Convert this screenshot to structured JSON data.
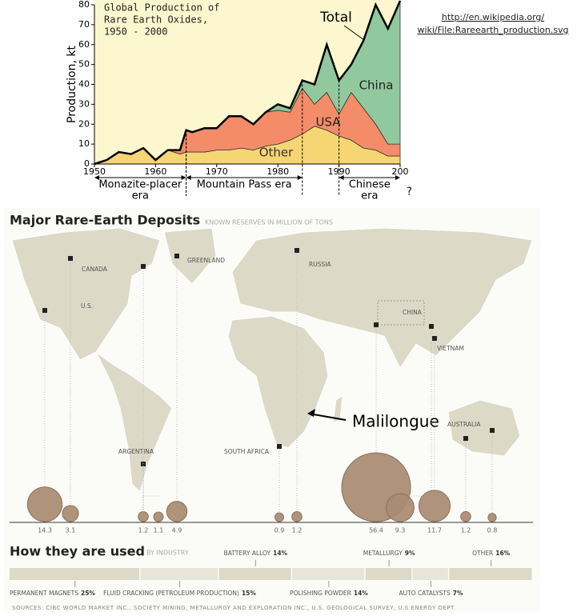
{
  "link": [
    "http://en.wikipedia.org/",
    "wiki/File:Rareearth_production.svg"
  ],
  "annotation": "Malilongue",
  "sources": "SOURCES: CIBC WORLD MARKET INC., SOCIETY MINING, METALLURGY AND EXPLORATION INC., U.S. GEOLOGICAL SURVEY, U.S ENERGY DEPT.",
  "chart_data": [
    {
      "type": "area",
      "title_lines": [
        "Global Production of",
        "Rare Earth Oxides,",
        "1950 - 2000"
      ],
      "ylabel": "Production, kt",
      "total_label": "Total",
      "x": [
        1950,
        1952,
        1954,
        1956,
        1958,
        1960,
        1962,
        1964,
        1965,
        1966,
        1968,
        1970,
        1972,
        1974,
        1976,
        1978,
        1980,
        1982,
        1984,
        1986,
        1988,
        1990,
        1992,
        1994,
        1996,
        1998,
        2000
      ],
      "series": [
        {
          "name": "Other",
          "color": "#f6d673",
          "values": [
            0,
            2,
            6,
            5,
            8,
            2,
            7,
            5,
            6,
            6,
            6,
            7,
            7,
            8,
            7,
            9,
            10,
            12,
            15,
            19,
            17,
            14,
            12,
            8,
            7,
            4,
            4
          ]
        },
        {
          "name": "USA",
          "color": "#f58c69",
          "values": [
            0,
            0,
            0,
            0,
            0,
            0,
            0,
            2,
            11,
            10,
            12,
            11,
            17,
            16,
            13,
            17,
            17,
            14,
            23,
            11,
            19,
            11,
            24,
            20,
            13,
            6,
            6
          ]
        },
        {
          "name": "China",
          "color": "#92c89d",
          "values": [
            0,
            0,
            0,
            0,
            0,
            0,
            0,
            0,
            0,
            0,
            0,
            0,
            0,
            0,
            0,
            0,
            3,
            2,
            4,
            10,
            24,
            17,
            14,
            34,
            60,
            58,
            72
          ]
        }
      ],
      "xlim": [
        1950,
        2000
      ],
      "ylim": [
        0,
        80
      ],
      "xticks": [
        1950,
        1960,
        1970,
        1980,
        1990,
        {
          "value": 2000,
          "label": "200"
        }
      ],
      "yticks": [
        0,
        10,
        20,
        30,
        40,
        50,
        60,
        70,
        80
      ],
      "eras": [
        {
          "lines": [
            "Monazite-placer",
            "era"
          ],
          "start": 1950,
          "end": 1965
        },
        {
          "lines": [
            "Mountain Pass era"
          ],
          "start": 1965,
          "end": 1984
        },
        {
          "lines": [
            "Chinese",
            "era"
          ],
          "start": 1990,
          "end": 2000
        }
      ],
      "era_note": "?"
    },
    {
      "type": "bubble",
      "title": "Major Rare-Earth Deposits",
      "subtitle": "KNOWN RESERVES IN MILLION OF TONS",
      "regions": [
        "CANADA",
        "U.S.",
        "GREENLAND",
        "RUSSIA",
        "CHINA",
        "VIETNAM",
        "ARGENTINA",
        "SOUTH AFRICA",
        "AUSTRALIA"
      ],
      "values": [
        14.3,
        3.1,
        1.2,
        1.1,
        4.9,
        0.9,
        1.2,
        56.4,
        9.3,
        11.7,
        1.2,
        0.8
      ],
      "color": "#a88b70"
    },
    {
      "type": "bar",
      "title": "How they are used",
      "subtitle": "BY INDUSTRY",
      "categories": [
        "PERMANENT MAGNETS",
        "FLUID CRACKING (PETROLEUM PRODUCTION)",
        "BATTERY ALLOY",
        "POLISHING POWDER",
        "METALLURGY",
        "AUTO CATALYSTS",
        "OTHER"
      ],
      "values": [
        25,
        15,
        14,
        14,
        9,
        7,
        16
      ],
      "value_labels": [
        "25%",
        "15%",
        "14%",
        "14%",
        "9%",
        "7%",
        "16%"
      ],
      "colors": [
        "#dcd9c6",
        "#e7e5d7"
      ]
    }
  ]
}
